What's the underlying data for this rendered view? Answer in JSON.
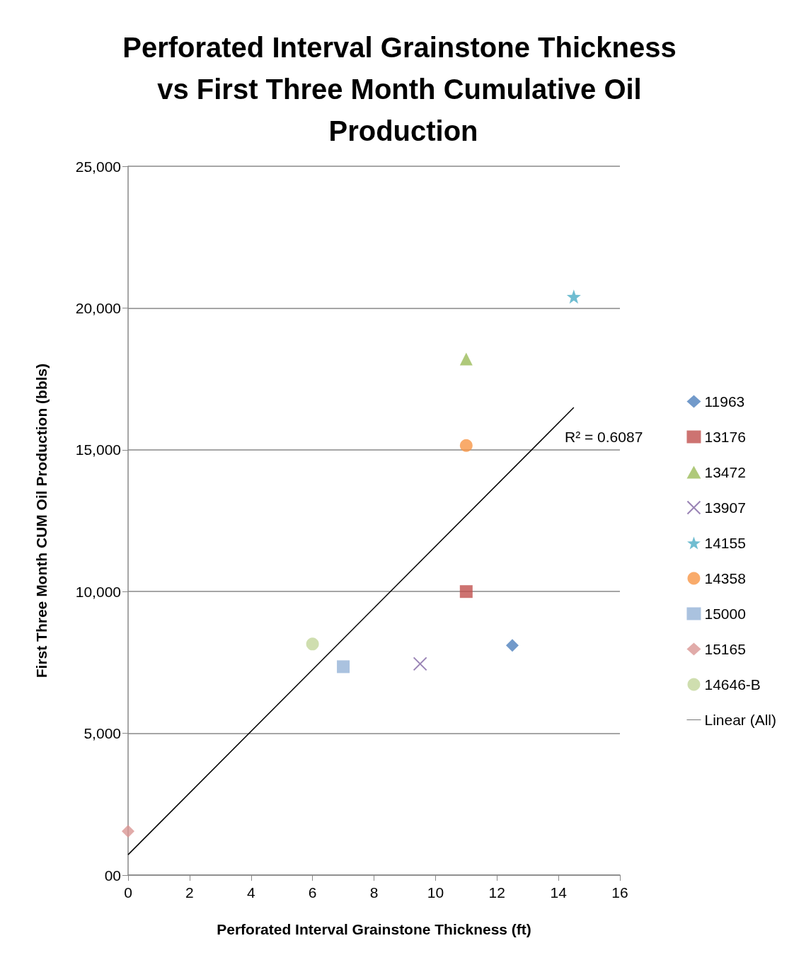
{
  "chart_data": {
    "type": "scatter",
    "title": "Perforated Interval Grainstone Thickness vs First Three Month Cumulative Oil Production",
    "xlabel": "Perforated Interval Grainstone Thickness (ft)",
    "ylabel": "First Three Month CUM Oil Production (bbls)",
    "xlim": [
      0,
      16
    ],
    "xticks": [
      0,
      2,
      4,
      6,
      8,
      10,
      12,
      14,
      16
    ],
    "ylim": [
      0,
      25000
    ],
    "yticks": [
      {
        "value": 0,
        "label": "00"
      },
      {
        "value": 5000,
        "label": "5,000"
      },
      {
        "value": 10000,
        "label": "10,000"
      },
      {
        "value": 15000,
        "label": "15,000"
      },
      {
        "value": 20000,
        "label": "20,000"
      },
      {
        "value": 25000,
        "label": "25,000"
      }
    ],
    "grid": "y",
    "legend": "right",
    "annotations": [
      "R² = 0.6087"
    ],
    "series": [
      {
        "name": "11963",
        "color": "#4f81bd",
        "marker": "diamond",
        "x": [
          12.5
        ],
        "values": [
          8100
        ]
      },
      {
        "name": "13176",
        "color": "#c0504d",
        "marker": "square",
        "x": [
          11
        ],
        "values": [
          10000
        ]
      },
      {
        "name": "13472",
        "color": "#9bbb59",
        "marker": "triangle",
        "x": [
          11
        ],
        "values": [
          18200
        ]
      },
      {
        "name": "13907",
        "color": "#8064a2",
        "marker": "cross",
        "x": [
          9.5
        ],
        "values": [
          7450
        ]
      },
      {
        "name": "14155",
        "color": "#4bacc6",
        "marker": "star",
        "x": [
          14.5
        ],
        "values": [
          20400
        ]
      },
      {
        "name": "14358",
        "color": "#f79646",
        "marker": "circle",
        "x": [
          11
        ],
        "values": [
          15150
        ]
      },
      {
        "name": "15000",
        "color": "#95b3d7",
        "marker": "square",
        "x": [
          7
        ],
        "values": [
          7350
        ]
      },
      {
        "name": "15165",
        "color": "#d99694",
        "marker": "diamond",
        "x": [
          0
        ],
        "values": [
          1550
        ]
      },
      {
        "name": "14646-B",
        "color": "#c3d69b",
        "marker": "circle",
        "x": [
          6
        ],
        "values": [
          8150
        ]
      },
      {
        "name": "Linear (All)",
        "color": "#000000",
        "type": "line",
        "marker": "none",
        "line_style": "solid",
        "x": [
          0,
          14.5
        ],
        "values": [
          720,
          16490
        ]
      }
    ]
  }
}
